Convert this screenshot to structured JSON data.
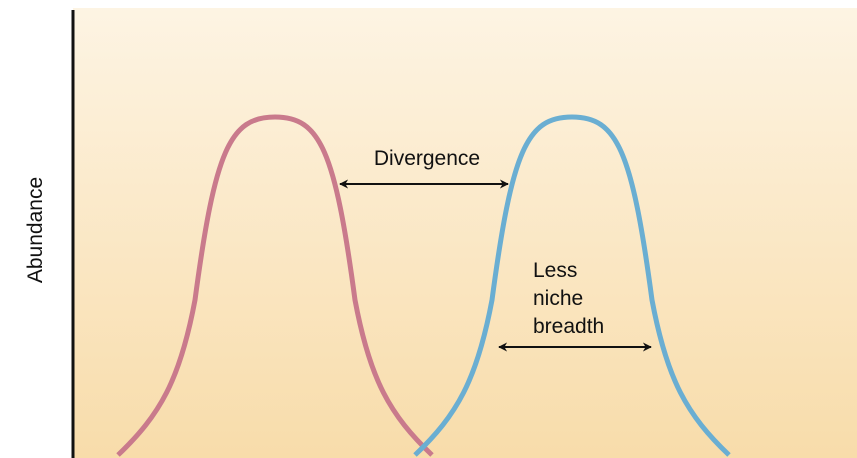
{
  "y_axis_label": "Abundance",
  "annotations": {
    "divergence": "Divergence",
    "niche_breadth": [
      "Less",
      "niche",
      "breadth"
    ]
  }
}
